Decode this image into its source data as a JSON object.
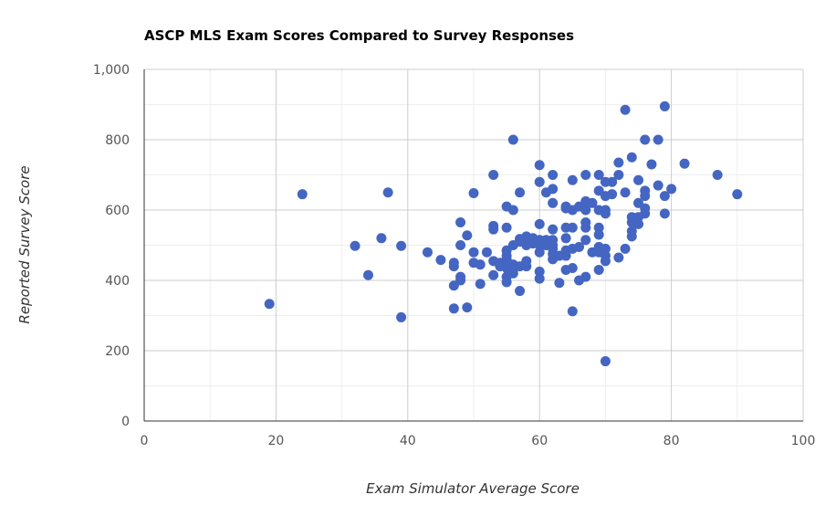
{
  "chart_data": {
    "type": "scatter",
    "title": "ASCP MLS Exam Scores Compared to Survey Responses",
    "xlabel": "Exam Simulator Average Score",
    "ylabel": "Reported Survey Score",
    "xlim": [
      0,
      100
    ],
    "ylim": [
      0,
      1000
    ],
    "x_ticks": [
      "0",
      "20",
      "40",
      "60",
      "80",
      "100"
    ],
    "y_ticks": [
      "0",
      "200",
      "400",
      "600",
      "800",
      "1,000"
    ],
    "grid": true,
    "legend": "none",
    "color": "#4466c2",
    "points": [
      [
        19,
        333
      ],
      [
        24,
        645
      ],
      [
        32,
        498
      ],
      [
        34,
        415
      ],
      [
        36,
        520
      ],
      [
        37,
        650
      ],
      [
        39,
        295
      ],
      [
        39,
        498
      ],
      [
        43,
        480
      ],
      [
        45,
        458
      ],
      [
        47,
        320
      ],
      [
        47,
        385
      ],
      [
        47,
        440
      ],
      [
        47,
        450
      ],
      [
        48,
        400
      ],
      [
        48,
        410
      ],
      [
        48,
        500
      ],
      [
        48,
        565
      ],
      [
        49,
        323
      ],
      [
        49,
        528
      ],
      [
        50,
        450
      ],
      [
        50,
        480
      ],
      [
        50,
        648
      ],
      [
        51,
        445
      ],
      [
        51,
        390
      ],
      [
        52,
        480
      ],
      [
        53,
        415
      ],
      [
        53,
        455
      ],
      [
        53,
        545
      ],
      [
        53,
        555
      ],
      [
        53,
        700
      ],
      [
        54,
        440
      ],
      [
        54,
        450
      ],
      [
        55,
        395
      ],
      [
        55,
        410
      ],
      [
        55,
        435
      ],
      [
        55,
        455
      ],
      [
        55,
        460
      ],
      [
        55,
        470
      ],
      [
        55,
        485
      ],
      [
        55,
        550
      ],
      [
        55,
        610
      ],
      [
        56,
        420
      ],
      [
        56,
        435
      ],
      [
        56,
        440
      ],
      [
        56,
        445
      ],
      [
        56,
        500
      ],
      [
        56,
        800
      ],
      [
        56,
        600
      ],
      [
        57,
        370
      ],
      [
        57,
        440
      ],
      [
        57,
        510
      ],
      [
        57,
        518
      ],
      [
        57,
        650
      ],
      [
        58,
        440
      ],
      [
        58,
        455
      ],
      [
        58,
        500
      ],
      [
        58,
        525
      ],
      [
        59,
        505
      ],
      [
        59,
        520
      ],
      [
        60,
        405
      ],
      [
        60,
        425
      ],
      [
        60,
        480
      ],
      [
        60,
        500
      ],
      [
        60,
        515
      ],
      [
        60,
        560
      ],
      [
        60,
        680
      ],
      [
        60,
        728
      ],
      [
        61,
        500
      ],
      [
        61,
        515
      ],
      [
        61,
        650
      ],
      [
        62,
        460
      ],
      [
        62,
        475
      ],
      [
        62,
        490
      ],
      [
        62,
        500
      ],
      [
        62,
        515
      ],
      [
        62,
        545
      ],
      [
        62,
        620
      ],
      [
        62,
        660
      ],
      [
        62,
        700
      ],
      [
        63,
        393
      ],
      [
        63,
        470
      ],
      [
        64,
        430
      ],
      [
        64,
        470
      ],
      [
        64,
        485
      ],
      [
        64,
        520
      ],
      [
        64,
        550
      ],
      [
        64,
        605
      ],
      [
        64,
        610
      ],
      [
        65,
        312
      ],
      [
        65,
        435
      ],
      [
        65,
        490
      ],
      [
        65,
        550
      ],
      [
        65,
        600
      ],
      [
        65,
        685
      ],
      [
        66,
        400
      ],
      [
        66,
        495
      ],
      [
        66,
        610
      ],
      [
        67,
        410
      ],
      [
        67,
        515
      ],
      [
        67,
        550
      ],
      [
        67,
        565
      ],
      [
        67,
        600
      ],
      [
        67,
        625
      ],
      [
        67,
        700
      ],
      [
        68,
        480
      ],
      [
        68,
        620
      ],
      [
        69,
        430
      ],
      [
        69,
        480
      ],
      [
        69,
        495
      ],
      [
        69,
        530
      ],
      [
        69,
        550
      ],
      [
        69,
        600
      ],
      [
        69,
        655
      ],
      [
        69,
        700
      ],
      [
        70,
        170
      ],
      [
        70,
        455
      ],
      [
        70,
        470
      ],
      [
        70,
        490
      ],
      [
        70,
        590
      ],
      [
        70,
        600
      ],
      [
        70,
        640
      ],
      [
        70,
        680
      ],
      [
        71,
        645
      ],
      [
        71,
        680
      ],
      [
        72,
        465
      ],
      [
        72,
        700
      ],
      [
        72,
        735
      ],
      [
        73,
        490
      ],
      [
        73,
        650
      ],
      [
        73,
        885
      ],
      [
        74,
        525
      ],
      [
        74,
        540
      ],
      [
        74,
        565
      ],
      [
        74,
        580
      ],
      [
        74,
        750
      ],
      [
        75,
        560
      ],
      [
        75,
        580
      ],
      [
        75,
        620
      ],
      [
        75,
        685
      ],
      [
        76,
        590
      ],
      [
        76,
        605
      ],
      [
        76,
        640
      ],
      [
        76,
        655
      ],
      [
        76,
        800
      ],
      [
        77,
        730
      ],
      [
        78,
        670
      ],
      [
        78,
        800
      ],
      [
        79,
        590
      ],
      [
        79,
        640
      ],
      [
        79,
        895
      ],
      [
        80,
        660
      ],
      [
        82,
        732
      ],
      [
        87,
        700
      ],
      [
        90,
        645
      ]
    ]
  }
}
